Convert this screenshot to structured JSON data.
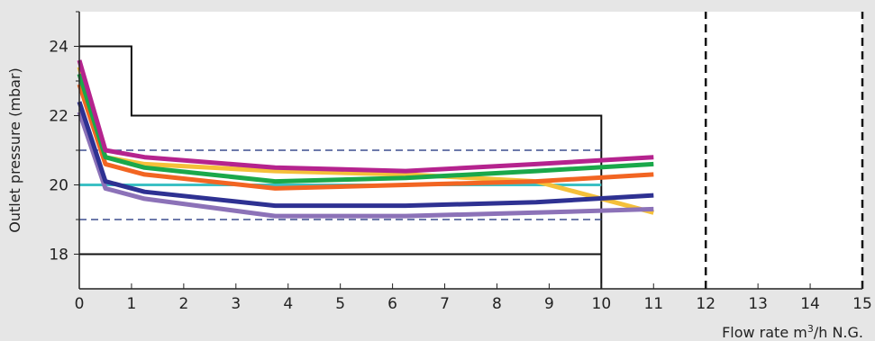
{
  "chart_data": {
    "type": "line",
    "xlabel": "Flow rate m³/h N.G.",
    "xlabel_parts": {
      "pre": "Flow rate m",
      "sup": "3",
      "post": "/h N.G."
    },
    "ylabel": "Outlet pressure (mbar)",
    "xlim": [
      0,
      15
    ],
    "ylim": [
      17,
      25
    ],
    "x_ticks": [
      0,
      1,
      2,
      3,
      4,
      5,
      6,
      7,
      8,
      9,
      10,
      11,
      12,
      13,
      14,
      15
    ],
    "y_ticks": [
      18,
      20,
      22,
      24
    ],
    "y_minor_ticks": [
      19,
      21,
      23,
      25
    ],
    "grid": false,
    "plot_background": "#ffffff",
    "reference_lines": [
      {
        "kind": "envelope",
        "style": "solid",
        "color": "#111111",
        "points": [
          [
            0,
            24
          ],
          [
            1,
            24
          ],
          [
            1,
            22
          ],
          [
            10,
            22
          ],
          [
            10,
            17
          ]
        ]
      },
      {
        "kind": "lower-limit",
        "style": "solid",
        "color": "#111111",
        "points": [
          [
            0,
            18
          ],
          [
            10,
            18
          ]
        ]
      },
      {
        "kind": "tolerance-upper",
        "style": "dashed",
        "color": "#3d4f8f",
        "points": [
          [
            0,
            21
          ],
          [
            10,
            21
          ]
        ]
      },
      {
        "kind": "tolerance-lower",
        "style": "dashed",
        "color": "#3d4f8f",
        "points": [
          [
            0,
            19
          ],
          [
            10,
            19
          ]
        ]
      },
      {
        "kind": "setpoint",
        "style": "solid",
        "color": "#3cc0c4",
        "points": [
          [
            0,
            20
          ],
          [
            10,
            20
          ]
        ]
      },
      {
        "kind": "vertical-marker",
        "style": "dashed",
        "color": "#111111",
        "points": [
          [
            12,
            17
          ],
          [
            12,
            25
          ]
        ]
      },
      {
        "kind": "vertical-marker",
        "style": "dashed",
        "color": "#111111",
        "points": [
          [
            15,
            17
          ],
          [
            15,
            25
          ]
        ]
      }
    ],
    "series": [
      {
        "color": "#f5c03a",
        "x": [
          0,
          0.5,
          1.25,
          3.75,
          6.25,
          8.75,
          11
        ],
        "y": [
          23.4,
          20.8,
          20.6,
          20.4,
          20.3,
          20.1,
          19.2
        ]
      },
      {
        "color": "#f26522",
        "x": [
          0,
          0.5,
          1.25,
          3.75,
          6.25,
          8.75,
          11
        ],
        "y": [
          22.9,
          20.6,
          20.3,
          19.9,
          20.0,
          20.1,
          20.3
        ]
      },
      {
        "color": "#1aa84a",
        "x": [
          0,
          0.5,
          1.25,
          3.75,
          6.25,
          8.75,
          11
        ],
        "y": [
          23.2,
          20.8,
          20.5,
          20.1,
          20.2,
          20.4,
          20.6
        ]
      },
      {
        "color": "#b5238e",
        "x": [
          0,
          0.5,
          1.25,
          3.75,
          6.25,
          8.75,
          11
        ],
        "y": [
          23.6,
          21.0,
          20.8,
          20.5,
          20.4,
          20.6,
          20.8
        ]
      },
      {
        "color": "#8c72b8",
        "x": [
          0,
          0.5,
          1.25,
          3.75,
          6.25,
          8.75,
          11
        ],
        "y": [
          22.1,
          19.9,
          19.6,
          19.1,
          19.1,
          19.2,
          19.3
        ]
      },
      {
        "color": "#2e3192",
        "x": [
          0,
          0.5,
          1.25,
          3.75,
          6.25,
          8.75,
          11
        ],
        "y": [
          22.4,
          20.1,
          19.8,
          19.4,
          19.4,
          19.5,
          19.7
        ]
      }
    ]
  }
}
